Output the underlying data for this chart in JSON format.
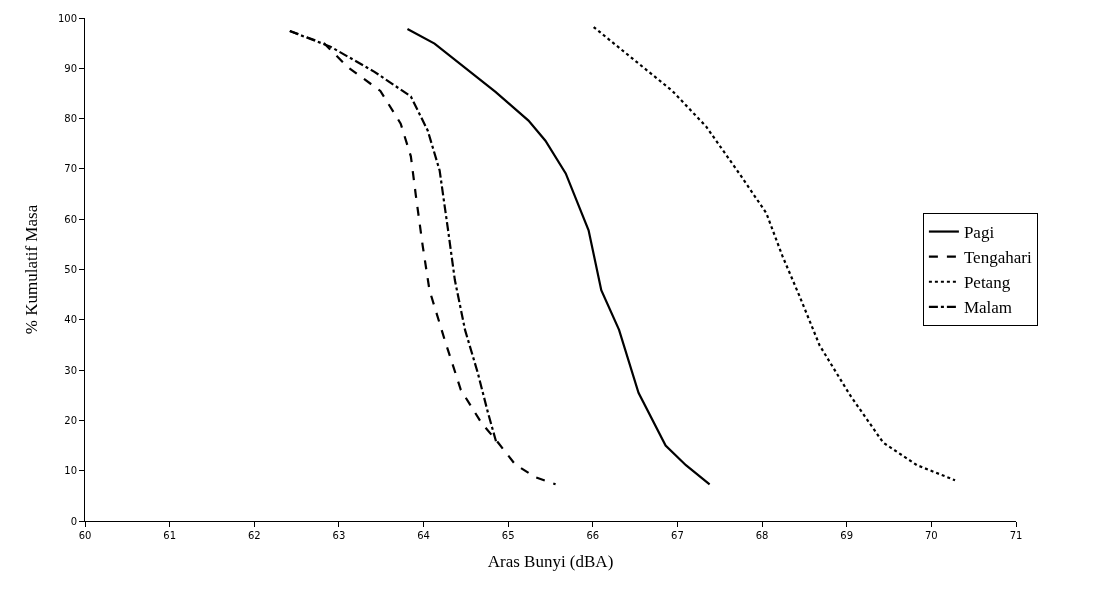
{
  "chart_data": {
    "type": "line",
    "xlabel": "Aras Bunyi (dBA)",
    "ylabel": "% Kumulatif Masa",
    "xlim": [
      60,
      71
    ],
    "xticks": [
      60,
      61,
      62,
      63,
      64,
      65,
      66,
      67,
      68,
      69,
      70,
      71
    ],
    "ylim": [
      0,
      100
    ],
    "yticks": [
      0,
      10,
      20,
      30,
      40,
      50,
      60,
      70,
      80,
      90,
      100
    ],
    "grid": false,
    "legend": "right",
    "marker": "none",
    "series": [
      {
        "name": "Pagi",
        "color": "#000000",
        "line_style": "solid",
        "x": [
          63.81,
          64.13,
          64.85,
          65.24,
          65.44,
          65.68,
          65.95,
          66.1,
          66.31,
          66.54,
          66.86,
          67.1,
          67.38
        ],
        "values": [
          97.8,
          94.9,
          85.3,
          79.6,
          75.6,
          69.1,
          57.8,
          45.9,
          38,
          25.5,
          15,
          11.1,
          7.3
        ]
      },
      {
        "name": "Tengahari",
        "color": "#000000",
        "line_style": "dashed",
        "x": [
          62.42,
          62.83,
          63.1,
          63.49,
          63.73,
          63.85,
          63.91,
          63.99,
          64.07,
          64.25,
          64.44,
          64.68,
          64.88,
          65.08,
          65.32,
          65.56
        ],
        "values": [
          97.4,
          94.9,
          90.3,
          85.5,
          79,
          72.5,
          64.6,
          54.7,
          45.9,
          36,
          26.1,
          19.6,
          15.6,
          11.3,
          8.7,
          7.3
        ]
      },
      {
        "name": "Petang",
        "color": "#000000",
        "line_style": "dotted",
        "x": [
          66.01,
          66.94,
          67.34,
          67.73,
          68.05,
          68.24,
          68.44,
          68.68,
          69.04,
          69.43,
          69.83,
          70.28
        ],
        "values": [
          98.2,
          85.5,
          78.4,
          69.1,
          61.2,
          52.7,
          44.8,
          34.9,
          25,
          15.6,
          11.1,
          8.1
        ]
      },
      {
        "name": "Malam",
        "color": "#000000",
        "line_style": "dashdot",
        "x": [
          62.42,
          62.9,
          63.42,
          63.85,
          64.05,
          64.19,
          64.29,
          64.37,
          64.49,
          64.64,
          64.76,
          64.86
        ],
        "values": [
          97.4,
          94.3,
          89.3,
          84.4,
          77.6,
          69.7,
          57.8,
          47.9,
          38,
          29.5,
          21.6,
          15.6
        ]
      }
    ]
  }
}
